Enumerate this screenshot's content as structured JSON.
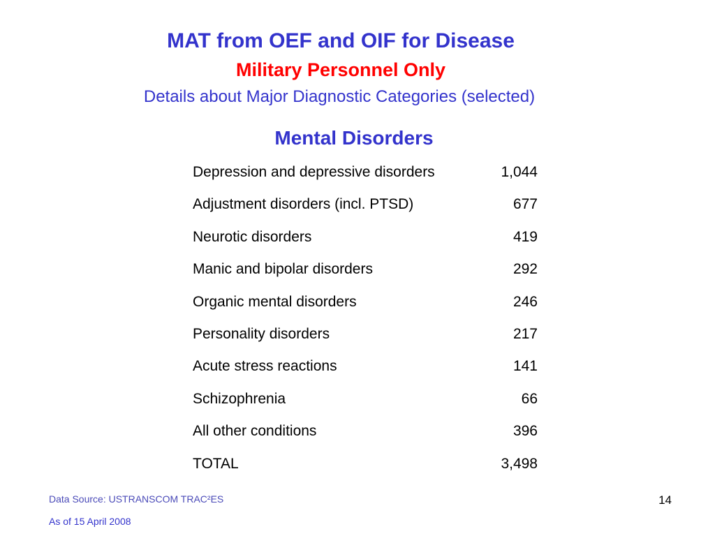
{
  "title": {
    "main": "MAT from OEF and OIF for Disease",
    "sub": "Military Personnel Only",
    "details": "Details about Major Diagnostic Categories (selected)"
  },
  "section_heading": "Mental Disorders",
  "rows": [
    {
      "label": "Depression and depressive disorders",
      "value": "1,044"
    },
    {
      "label": "Adjustment disorders (incl. PTSD)",
      "value": "677"
    },
    {
      "label": "Neurotic disorders",
      "value": "419"
    },
    {
      "label": "Manic and bipolar disorders",
      "value": "292"
    },
    {
      "label": "Organic mental disorders",
      "value": "246"
    },
    {
      "label": "Personality disorders",
      "value": "217"
    },
    {
      "label": "Acute stress reactions",
      "value": "141"
    },
    {
      "label": "Schizophrenia",
      "value": "66"
    },
    {
      "label": "All other conditions",
      "value": "396"
    },
    {
      "label": "TOTAL",
      "value": "3,498"
    }
  ],
  "footer": {
    "source": "Data Source: USTRANSCOM TRAC²ES",
    "date": "As of 15 April 2008",
    "page_number": "14"
  },
  "colors": {
    "title_blue": "#3333cc",
    "subtitle_red": "#ff0000",
    "body_text": "#000000"
  }
}
